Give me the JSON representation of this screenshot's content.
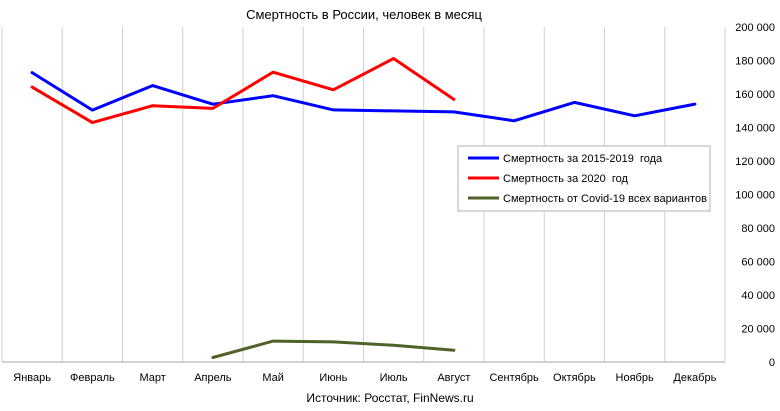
{
  "chart_data": {
    "type": "line",
    "title": "Смертность в России, человек в месяц",
    "source": "Источник: Росстат, FinNews.ru",
    "categories": [
      "Январь",
      "Февраль",
      "Март",
      "Апрель",
      "Май",
      "Июнь",
      "Июль",
      "Август",
      "Сентябрь",
      "Октябрь",
      "Ноябрь",
      "Декабрь"
    ],
    "y_axis": {
      "min": 0,
      "max": 200000,
      "ticks": [
        0,
        20000,
        40000,
        60000,
        80000,
        100000,
        120000,
        140000,
        160000,
        180000,
        200000
      ],
      "tick_labels": [
        "0",
        "20 000",
        "40 000",
        "60 000",
        "80 000",
        "100 000",
        "120 000",
        "140 000",
        "160 000",
        "180 000",
        "200 000"
      ],
      "position": "right"
    },
    "grid": {
      "vertical": true,
      "horizontal": false
    },
    "legend_position": "right",
    "series": [
      {
        "name": "Смертность за 2015-2019  года",
        "color": "#0000ff",
        "values": [
          172800,
          150400,
          165000,
          153900,
          159000,
          150500,
          149900,
          149300,
          144000,
          155000,
          147000,
          154000
        ]
      },
      {
        "name": "Смертность за 2020  год",
        "color": "#ff0000",
        "values": [
          164100,
          142900,
          153000,
          151400,
          173000,
          162500,
          181200,
          156800,
          null,
          null,
          null,
          null
        ]
      },
      {
        "name": "Смертность от Covid-19 всех вариантов",
        "color": "#4f6228",
        "values": [
          null,
          null,
          null,
          2700,
          12500,
          12000,
          10000,
          7000,
          null,
          null,
          null,
          null
        ]
      }
    ]
  }
}
